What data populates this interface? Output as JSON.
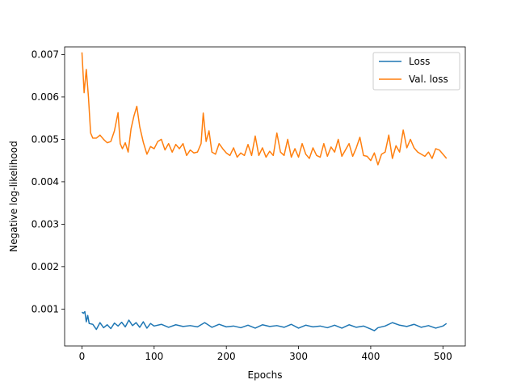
{
  "chart_data": {
    "type": "line",
    "xlabel": "Epochs",
    "ylabel": "Negative log-likelihood",
    "xlim": [
      -24,
      531
    ],
    "ylim": [
      0.00013,
      0.00718
    ],
    "x_ticks": [
      0,
      100,
      200,
      300,
      400,
      500
    ],
    "y_ticks": [
      0.001,
      0.002,
      0.003,
      0.004,
      0.005,
      0.006,
      0.007
    ],
    "y_tick_labels": [
      "0.001",
      "0.002",
      "0.003",
      "0.004",
      "0.005",
      "0.006",
      "0.007"
    ],
    "grid": false,
    "legend_position": "upper right",
    "series": [
      {
        "name": "Loss",
        "color": "#1f77b4",
        "x": [
          0,
          2,
          4,
          6,
          8,
          10,
          15,
          20,
          25,
          30,
          35,
          40,
          45,
          50,
          55,
          60,
          65,
          70,
          75,
          80,
          85,
          90,
          95,
          100,
          110,
          120,
          130,
          140,
          150,
          160,
          170,
          180,
          190,
          200,
          210,
          220,
          230,
          240,
          250,
          260,
          270,
          280,
          290,
          300,
          310,
          320,
          330,
          340,
          350,
          360,
          370,
          380,
          390,
          400,
          405,
          410,
          420,
          430,
          440,
          450,
          460,
          470,
          480,
          490,
          500,
          505
        ],
        "y": [
          0.00093,
          0.0009,
          0.00094,
          0.0007,
          0.00085,
          0.00066,
          0.00064,
          0.00052,
          0.00068,
          0.00056,
          0.00063,
          0.00054,
          0.00067,
          0.0006,
          0.00069,
          0.00058,
          0.00074,
          0.00061,
          0.00068,
          0.00057,
          0.0007,
          0.00055,
          0.00066,
          0.0006,
          0.00064,
          0.00057,
          0.00063,
          0.00059,
          0.00061,
          0.00058,
          0.00068,
          0.00057,
          0.00064,
          0.00058,
          0.0006,
          0.00056,
          0.00062,
          0.00055,
          0.00063,
          0.00059,
          0.00061,
          0.00057,
          0.00064,
          0.00055,
          0.00062,
          0.00058,
          0.0006,
          0.00056,
          0.00062,
          0.00055,
          0.00063,
          0.00057,
          0.0006,
          0.00053,
          0.00049,
          0.00056,
          0.0006,
          0.00068,
          0.00062,
          0.00059,
          0.00064,
          0.00057,
          0.00061,
          0.00055,
          0.0006,
          0.00066
        ]
      },
      {
        "name": "Val. loss",
        "color": "#ff7f0e",
        "x": [
          0,
          3,
          6,
          9,
          12,
          15,
          20,
          25,
          30,
          35,
          40,
          45,
          50,
          53,
          56,
          60,
          64,
          68,
          72,
          76,
          80,
          85,
          90,
          95,
          100,
          105,
          110,
          115,
          120,
          125,
          130,
          135,
          140,
          145,
          150,
          155,
          160,
          165,
          168,
          172,
          176,
          180,
          185,
          190,
          195,
          200,
          205,
          210,
          215,
          220,
          225,
          230,
          235,
          240,
          245,
          250,
          255,
          260,
          265,
          270,
          275,
          280,
          285,
          290,
          295,
          300,
          305,
          310,
          315,
          320,
          325,
          330,
          335,
          340,
          345,
          350,
          355,
          360,
          365,
          370,
          375,
          380,
          385,
          390,
          395,
          400,
          405,
          410,
          415,
          420,
          425,
          430,
          435,
          440,
          445,
          450,
          455,
          460,
          465,
          470,
          475,
          480,
          485,
          490,
          495,
          500,
          505
        ],
        "y": [
          0.00705,
          0.0061,
          0.00665,
          0.006,
          0.00515,
          0.00503,
          0.00503,
          0.0051,
          0.005,
          0.00492,
          0.00495,
          0.0052,
          0.00563,
          0.0049,
          0.00478,
          0.00492,
          0.0047,
          0.00525,
          0.00555,
          0.00578,
          0.0053,
          0.00493,
          0.00465,
          0.00483,
          0.00478,
          0.00495,
          0.005,
          0.00475,
          0.0049,
          0.0047,
          0.00488,
          0.00478,
          0.0049,
          0.00462,
          0.00475,
          0.00468,
          0.0047,
          0.0049,
          0.00562,
          0.00495,
          0.0052,
          0.0047,
          0.00465,
          0.0049,
          0.00478,
          0.00468,
          0.00462,
          0.0048,
          0.00458,
          0.00468,
          0.00462,
          0.00488,
          0.00462,
          0.00508,
          0.00462,
          0.0048,
          0.00458,
          0.00472,
          0.00462,
          0.00515,
          0.0047,
          0.00462,
          0.005,
          0.00458,
          0.00478,
          0.00458,
          0.0049,
          0.00465,
          0.00455,
          0.0048,
          0.00462,
          0.00458,
          0.0049,
          0.0046,
          0.00482,
          0.0047,
          0.005,
          0.0046,
          0.00475,
          0.0049,
          0.0046,
          0.0048,
          0.00505,
          0.00462,
          0.0046,
          0.0045,
          0.00468,
          0.0044,
          0.00465,
          0.0047,
          0.0051,
          0.00455,
          0.00485,
          0.0047,
          0.00522,
          0.0048,
          0.005,
          0.0048,
          0.0047,
          0.00465,
          0.0046,
          0.0047,
          0.00455,
          0.00478,
          0.00475,
          0.00465,
          0.00455
        ]
      }
    ]
  }
}
